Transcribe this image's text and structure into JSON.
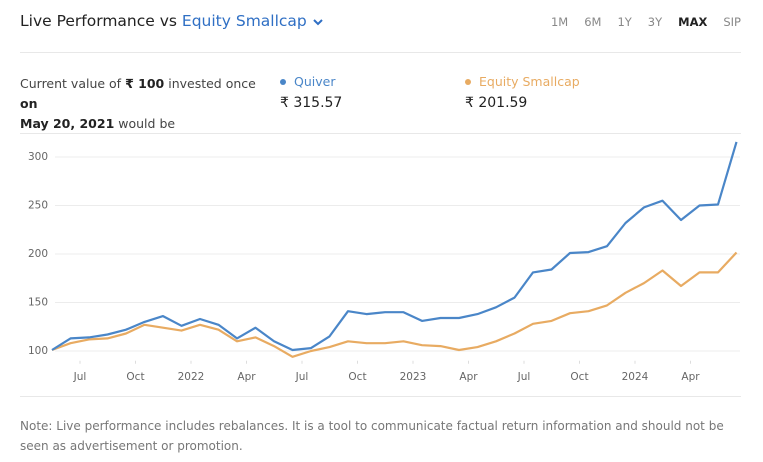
{
  "header": {
    "title": "Live Performance vs",
    "benchmark": "Equity Smallcap",
    "tabs": [
      "1M",
      "6M",
      "1Y",
      "3Y",
      "MAX",
      "SIP"
    ],
    "active_tab": "MAX"
  },
  "summary": {
    "intro": [
      "Current value of",
      "₹ 100",
      "invested once",
      "on",
      "May 20, 2021",
      "would be"
    ],
    "values": [
      "₹ 315.57",
      "₹ 201.59"
    ]
  },
  "chart_data": {
    "type": "line",
    "x": [
      "2021-05",
      "2021-06",
      "2021-07",
      "2021-08",
      "2021-09",
      "2021-10",
      "2021-11",
      "2021-12",
      "2022-01",
      "2022-02",
      "2022-03",
      "2022-04",
      "2022-05",
      "2022-06",
      "2022-07",
      "2022-08",
      "2022-09",
      "2022-10",
      "2022-11",
      "2022-12",
      "2023-01",
      "2023-02",
      "2023-03",
      "2023-04",
      "2023-05",
      "2023-06",
      "2023-07",
      "2023-08",
      "2023-09",
      "2023-10",
      "2023-11",
      "2023-12",
      "2024-01",
      "2024-02",
      "2024-03",
      "2024-04",
      "2024-05",
      "2024-06"
    ],
    "series": [
      {
        "name": "Quiver",
        "color": "#4a86c8",
        "values": [
          101,
          113,
          114,
          117,
          122,
          130,
          136,
          126,
          133,
          127,
          113,
          124,
          110,
          101,
          103,
          115,
          141,
          138,
          140,
          140,
          131,
          134,
          134,
          138,
          145,
          155,
          181,
          184,
          201,
          202,
          208,
          232,
          248,
          255,
          235,
          250,
          251,
          315.57
        ]
      },
      {
        "name": "Equity Smallcap",
        "color": "#e8ab62",
        "values": [
          101,
          108,
          112,
          113,
          118,
          127,
          124,
          121,
          127,
          122,
          110,
          114,
          105,
          94,
          100,
          104,
          110,
          108,
          108,
          110,
          106,
          105,
          101,
          104,
          110,
          118,
          128,
          131,
          139,
          141,
          147,
          160,
          170,
          183,
          167,
          181,
          181,
          201.59
        ]
      }
    ],
    "ylim": [
      90,
      320
    ],
    "yticks": [
      100,
      150,
      200,
      250,
      300
    ],
    "xticks": [
      {
        "value": "2021-07",
        "label": "Jul"
      },
      {
        "value": "2021-10",
        "label": "Oct"
      },
      {
        "value": "2022-01",
        "label": "2022"
      },
      {
        "value": "2022-04",
        "label": "Apr"
      },
      {
        "value": "2022-07",
        "label": "Jul"
      },
      {
        "value": "2022-10",
        "label": "Oct"
      },
      {
        "value": "2023-01",
        "label": "2023"
      },
      {
        "value": "2023-04",
        "label": "Apr"
      },
      {
        "value": "2023-07",
        "label": "Jul"
      },
      {
        "value": "2023-10",
        "label": "Oct"
      },
      {
        "value": "2024-01",
        "label": "2024"
      },
      {
        "value": "2024-04",
        "label": "Apr"
      }
    ],
    "grid": true
  },
  "note": "Note: Live performance includes rebalances. It is a tool to communicate factual return information and should not be seen as advertisement or promotion."
}
